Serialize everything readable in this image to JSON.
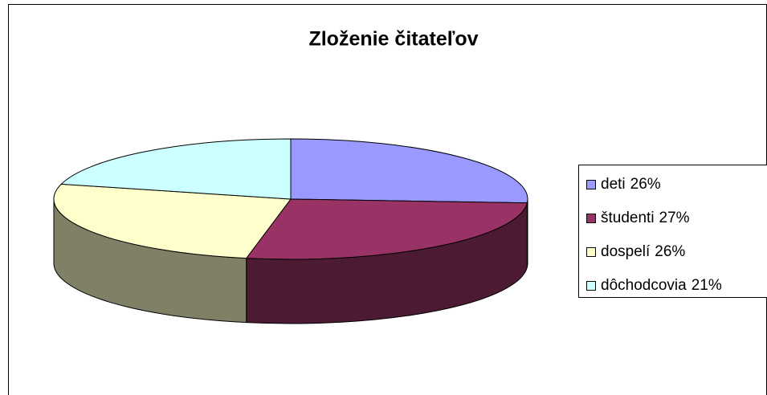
{
  "chart_data": {
    "type": "pie",
    "title": "Zloženie čitateľov",
    "categories": [
      "deti",
      "študenti",
      "dospelí",
      "dôchodcovia"
    ],
    "values": [
      26,
      27,
      26,
      21
    ],
    "value_labels": [
      "26%",
      "27%",
      "26%",
      "21%"
    ],
    "colors": [
      "#9999ff",
      "#993366",
      "#ffffcc",
      "#ccffff"
    ],
    "legend": "right"
  }
}
